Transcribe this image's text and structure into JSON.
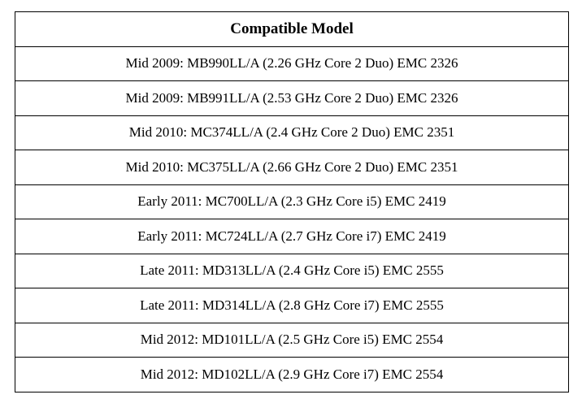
{
  "table": {
    "header": "Compatible Model",
    "rows": [
      "Mid 2009: MB990LL/A (2.26 GHz Core 2 Duo) EMC 2326",
      "Mid 2009: MB991LL/A (2.53 GHz Core 2 Duo) EMC 2326",
      "Mid 2010: MC374LL/A (2.4 GHz Core 2 Duo) EMC 2351",
      "Mid 2010: MC375LL/A (2.66 GHz Core 2 Duo) EMC 2351",
      "Early 2011: MC700LL/A (2.3 GHz Core i5) EMC 2419",
      "Early 2011: MC724LL/A (2.7 GHz Core i7) EMC 2419",
      "Late 2011: MD313LL/A (2.4 GHz Core i5) EMC 2555",
      "Late 2011: MD314LL/A (2.8 GHz Core i7) EMC 2555",
      "Mid 2012: MD101LL/A (2.5 GHz Core i5) EMC 2554",
      "Mid 2012: MD102LL/A (2.9 GHz Core i7) EMC 2554"
    ]
  }
}
